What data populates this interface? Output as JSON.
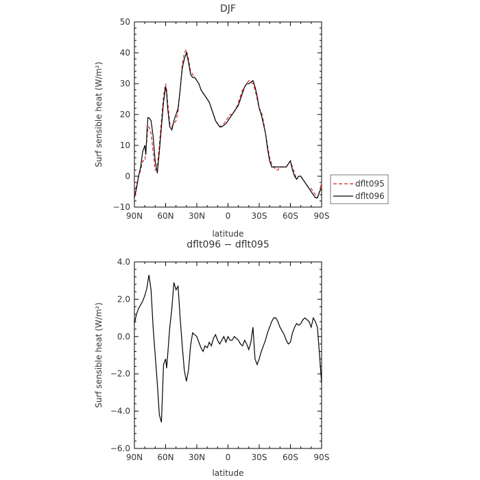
{
  "colors": {
    "dflt095": "#cc2222",
    "dflt096": "#000000"
  },
  "chart_data": [
    {
      "type": "line",
      "title": "DJF",
      "xlabel": "latitude",
      "ylabel": "Surf sensible heat (W/m²)",
      "xticks": [
        "90N",
        "60N",
        "30N",
        "0",
        "30S",
        "60S",
        "90S"
      ],
      "yticks": [
        "50",
        "40",
        "30",
        "20",
        "10",
        "0",
        "−10"
      ],
      "ylim": [
        -10,
        50
      ],
      "xlim": [
        90,
        -90
      ],
      "legend": {
        "position": "right",
        "entries": [
          "dflt095",
          "dflt096"
        ]
      },
      "series": [
        {
          "name": "dflt095",
          "style": "dashed",
          "x": [
            90,
            88,
            86,
            84,
            82,
            80,
            79,
            78,
            77,
            76,
            74,
            72,
            70,
            68,
            66,
            64,
            62,
            60,
            59,
            58,
            56,
            54,
            52,
            50,
            48,
            46,
            44,
            42,
            40,
            38,
            36,
            34,
            32,
            30,
            28,
            26,
            24,
            22,
            20,
            18,
            16,
            14,
            12,
            10,
            8,
            6,
            4,
            2,
            0,
            -2,
            -4,
            -6,
            -8,
            -10,
            -12,
            -14,
            -16,
            -18,
            -20,
            -22,
            -24,
            -26,
            -28,
            -30,
            -32,
            -34,
            -36,
            -38,
            -40,
            -42,
            -44,
            -46,
            -48,
            -50,
            -52,
            -54,
            -56,
            -58,
            -60,
            -62,
            -64,
            -66,
            -68,
            -70,
            -72,
            -74,
            -76,
            -78,
            -80,
            -82,
            -84,
            -86,
            -88,
            -90
          ],
          "y": [
            -6,
            -3,
            0,
            2,
            5,
            5,
            8,
            12,
            16,
            16,
            14,
            8,
            2,
            3,
            10,
            18,
            26,
            30,
            28,
            24,
            17,
            16,
            17,
            18,
            21,
            28,
            36,
            40,
            41,
            38,
            34,
            33,
            32,
            31,
            30,
            28,
            27,
            26,
            25,
            24,
            22,
            20,
            18,
            17,
            16,
            16.5,
            17,
            18,
            19,
            20,
            20,
            21,
            22,
            24,
            26,
            28,
            29,
            30,
            31,
            30.5,
            30,
            28,
            25,
            22,
            21,
            18,
            14,
            10,
            6,
            4,
            3,
            2,
            2,
            3,
            3,
            3,
            3,
            4,
            5,
            3,
            1,
            -1,
            0,
            0,
            -1,
            -2,
            -3,
            -4,
            -4,
            -5,
            -6,
            -7,
            -5,
            -2
          ]
        },
        {
          "name": "dflt096",
          "style": "solid",
          "x": [
            90,
            88,
            86,
            84,
            82,
            80,
            79,
            78,
            77,
            76,
            74,
            72,
            70,
            68,
            66,
            64,
            62,
            60,
            59,
            58,
            56,
            54,
            52,
            50,
            48,
            46,
            44,
            42,
            40,
            38,
            36,
            34,
            32,
            30,
            28,
            26,
            24,
            22,
            20,
            18,
            16,
            14,
            12,
            10,
            8,
            6,
            4,
            2,
            0,
            -2,
            -4,
            -6,
            -8,
            -10,
            -12,
            -14,
            -16,
            -18,
            -20,
            -22,
            -24,
            -26,
            -28,
            -30,
            -32,
            -34,
            -36,
            -38,
            -40,
            -42,
            -44,
            -46,
            -48,
            -50,
            -52,
            -54,
            -56,
            -58,
            -60,
            -62,
            -64,
            -66,
            -68,
            -70,
            -72,
            -74,
            -76,
            -78,
            -80,
            -82,
            -84,
            -86,
            -88,
            -90
          ],
          "y": [
            -7,
            -4,
            0,
            3,
            8,
            10,
            7,
            14,
            19,
            19,
            18,
            13,
            5,
            1,
            8,
            16,
            24,
            29,
            27,
            22,
            16,
            15,
            18,
            20,
            22,
            28,
            35,
            38,
            40,
            37,
            33,
            32,
            32,
            31,
            30,
            28,
            27,
            26,
            25,
            24,
            22,
            20,
            18,
            17,
            16,
            16,
            16.5,
            17,
            18,
            19,
            20,
            21,
            22,
            23,
            25,
            27,
            29,
            30,
            30,
            30.5,
            31,
            29,
            26,
            22,
            20,
            17,
            14,
            9,
            5,
            3,
            3,
            3,
            3,
            3,
            3,
            3,
            3,
            4,
            5,
            2,
            0,
            -1,
            0,
            0,
            -1,
            -2,
            -3,
            -4,
            -5,
            -6,
            -7,
            -7,
            -5,
            -4
          ]
        }
      ]
    },
    {
      "type": "line",
      "title": "dflt096 − dflt095",
      "xlabel": "latitude",
      "ylabel": "Surf sensible heat (W/m²)",
      "xticks": [
        "90N",
        "60N",
        "30N",
        "0",
        "30S",
        "60S",
        "90S"
      ],
      "yticks": [
        "4.0",
        "2.0",
        "0.0",
        "−2.0",
        "−4.0",
        "−6.0"
      ],
      "ylim": [
        -6,
        4
      ],
      "xlim": [
        90,
        -90
      ],
      "series": [
        {
          "name": "dflt096 − dflt095",
          "style": "solid",
          "x": [
            90,
            88,
            86,
            84,
            82,
            80,
            78,
            76,
            74,
            72,
            70,
            68,
            66,
            64,
            62,
            60,
            59,
            58,
            56,
            54,
            52,
            50,
            48,
            46,
            44,
            42,
            40,
            38,
            36,
            34,
            32,
            30,
            28,
            26,
            24,
            22,
            20,
            18,
            16,
            14,
            12,
            10,
            8,
            6,
            4,
            2,
            0,
            -2,
            -4,
            -6,
            -8,
            -10,
            -12,
            -14,
            -16,
            -18,
            -20,
            -22,
            -24,
            -26,
            -28,
            -30,
            -32,
            -34,
            -36,
            -38,
            -40,
            -42,
            -44,
            -46,
            -48,
            -50,
            -52,
            -54,
            -56,
            -58,
            -60,
            -62,
            -64,
            -66,
            -68,
            -70,
            -72,
            -74,
            -76,
            -78,
            -80,
            -82,
            -84,
            -86,
            -88,
            -90
          ],
          "y": [
            0.7,
            1.2,
            1.5,
            1.7,
            1.9,
            2.2,
            2.6,
            3.3,
            2.5,
            0.5,
            -1,
            -2.5,
            -4.2,
            -4.6,
            -1.5,
            -1.2,
            -1.7,
            -1.0,
            0.5,
            1.5,
            2.9,
            2.5,
            2.7,
            1.0,
            -0.5,
            -1.8,
            -2.4,
            -1.8,
            -0.5,
            0.2,
            0.1,
            0.0,
            -0.3,
            -0.6,
            -0.8,
            -0.5,
            -0.6,
            -0.3,
            -0.5,
            -0.1,
            0.1,
            -0.2,
            -0.4,
            -0.2,
            0.0,
            -0.3,
            0.0,
            -0.2,
            -0.2,
            0.0,
            -0.1,
            -0.2,
            -0.4,
            -0.5,
            -0.2,
            -0.4,
            -0.7,
            -0.3,
            0.5,
            -1.2,
            -1.5,
            -1.2,
            -0.8,
            -0.5,
            -0.2,
            0.2,
            0.5,
            0.8,
            1.0,
            1.0,
            0.8,
            0.5,
            0.3,
            0.1,
            -0.2,
            -0.4,
            -0.3,
            0.2,
            0.5,
            0.7,
            0.6,
            0.7,
            0.9,
            1.0,
            0.9,
            0.8,
            0.5,
            1.0,
            0.8,
            0.5,
            -1.0,
            -2.5
          ]
        }
      ]
    }
  ]
}
